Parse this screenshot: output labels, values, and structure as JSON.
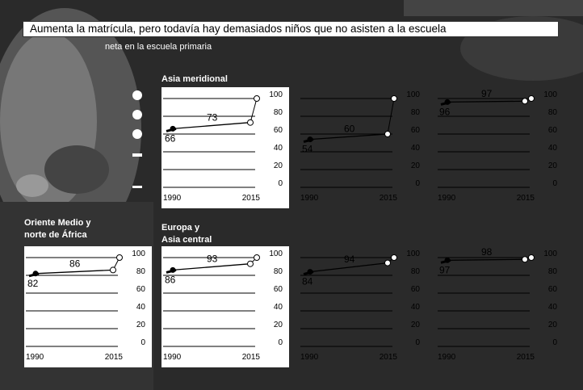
{
  "title": "Aumenta la matrícula, pero todavía hay demasiados niños que no asisten a la escuela",
  "subtitle": "neta en la escuela primaria",
  "panel_labels": {
    "south_asia": "Asia meridional",
    "mena_line1": "Oriente Medio y",
    "mena_line2": "norte de África",
    "eca_line1": "Europa y",
    "eca_line2": "Asia central"
  },
  "chart_data": [
    {
      "type": "line",
      "title": "Asia meridional",
      "x": [
        "1990",
        "2015"
      ],
      "values": [
        66,
        73
      ],
      "yticks": [
        0,
        20,
        40,
        60,
        80,
        100
      ],
      "ylim": [
        0,
        100
      ],
      "target": 100
    },
    {
      "type": "line",
      "title": "",
      "x": [
        "1990",
        "2015"
      ],
      "values": [
        54,
        60
      ],
      "yticks": [
        0,
        20,
        40,
        60,
        80,
        100
      ],
      "ylim": [
        0,
        100
      ],
      "target": 100
    },
    {
      "type": "line",
      "title": "",
      "x": [
        "1990",
        "2015"
      ],
      "values": [
        96,
        97
      ],
      "yticks": [
        0,
        20,
        40,
        60,
        80,
        100
      ],
      "ylim": [
        0,
        100
      ],
      "target": 100
    },
    {
      "type": "line",
      "title": "Oriente Medio y norte de África",
      "x": [
        "1990",
        "2015"
      ],
      "values": [
        82,
        86
      ],
      "yticks": [
        0,
        20,
        40,
        60,
        80,
        100
      ],
      "ylim": [
        0,
        100
      ],
      "target": 100
    },
    {
      "type": "line",
      "title": "Europa y Asia central",
      "x": [
        "1990",
        "2015"
      ],
      "values": [
        86,
        93
      ],
      "yticks": [
        0,
        20,
        40,
        60,
        80,
        100
      ],
      "ylim": [
        0,
        100
      ],
      "target": 100
    },
    {
      "type": "line",
      "title": "",
      "x": [
        "1990",
        "2015"
      ],
      "values": [
        84,
        94
      ],
      "yticks": [
        0,
        20,
        40,
        60,
        80,
        100
      ],
      "ylim": [
        0,
        100
      ],
      "target": 100
    },
    {
      "type": "line",
      "title": "",
      "x": [
        "1990",
        "2015"
      ],
      "values": [
        97,
        98
      ],
      "yticks": [
        0,
        20,
        40,
        60,
        80,
        100
      ],
      "ylim": [
        0,
        100
      ],
      "target": 100
    }
  ]
}
